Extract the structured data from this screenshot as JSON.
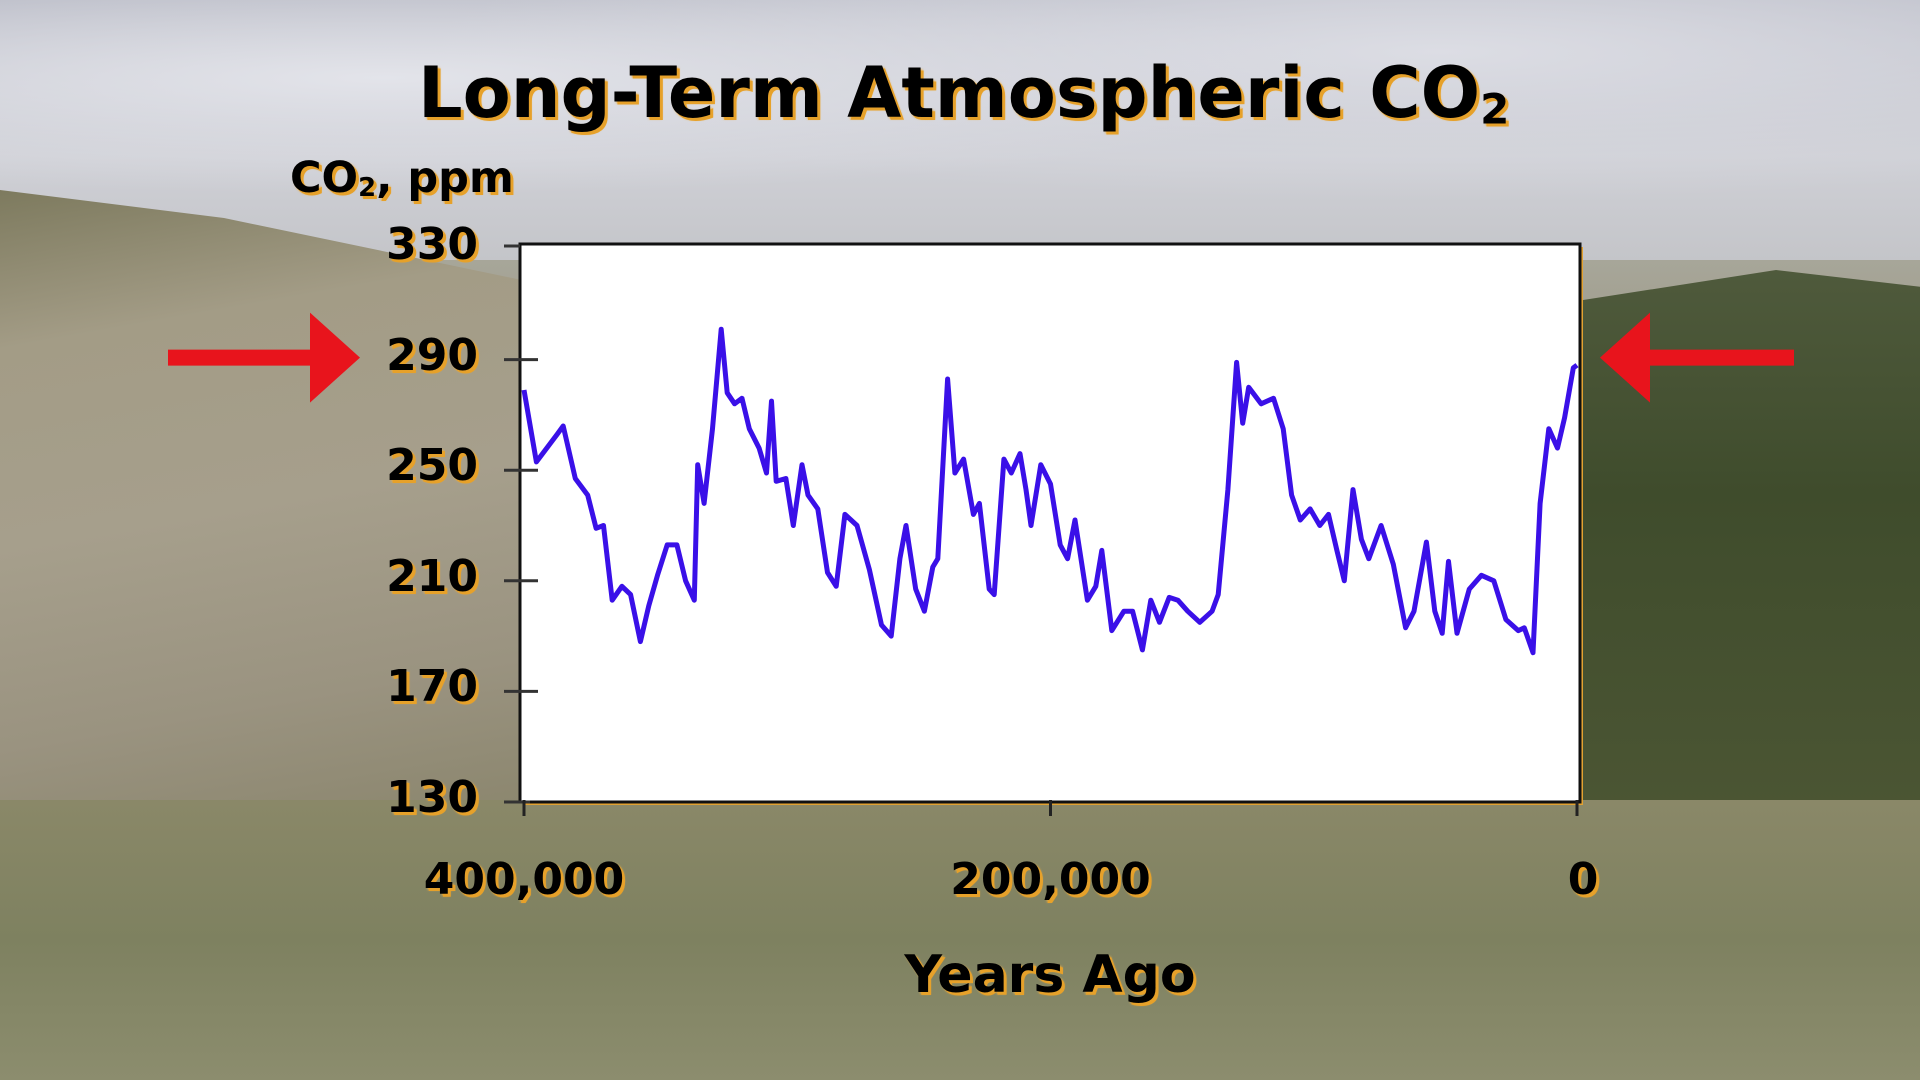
{
  "title": {
    "main": "Long-Term Atmospheric CO",
    "sub": "2"
  },
  "y_axis_label": {
    "main": "CO",
    "sub": "2",
    "rest": ", ppm"
  },
  "colors": {
    "line": "#3a10e8",
    "plot_bg": "#ffffff",
    "arrow": "#e8141c",
    "text_glow": "#e6a12a"
  },
  "arrows": {
    "left": "right-arrow-icon",
    "right": "left-arrow-icon",
    "marked_level_ppm": 290
  },
  "chart_data": {
    "type": "line",
    "title": "Long-Term Atmospheric CO2",
    "xlabel": "Years Ago",
    "ylabel": "CO2, ppm",
    "xlim": [
      400000,
      0
    ],
    "ylim": [
      130,
      330
    ],
    "x_ticks": [
      400000,
      200000,
      0
    ],
    "x_tick_labels": [
      "400,000",
      "200,000",
      "0"
    ],
    "y_ticks": [
      330,
      290,
      250,
      210,
      170,
      130
    ],
    "y_tick_labels": [
      "330",
      "290",
      "250",
      "210",
      "170",
      "130"
    ],
    "grid": false,
    "legend": "none",
    "series": [
      {
        "name": "CO2",
        "x": [
          400000,
          395300,
          387400,
          385100,
          380500,
          375800,
          372600,
          369800,
          366500,
          362800,
          359500,
          355800,
          352600,
          349300,
          345600,
          341900,
          338600,
          335300,
          334000,
          331600,
          328400,
          325100,
          322800,
          320000,
          317200,
          314400,
          310700,
          307900,
          306000,
          304200,
          300500,
          297700,
          294400,
          292100,
          288400,
          284700,
          281400,
          278100,
          273500,
          268800,
          264200,
          260500,
          257200,
          254900,
          251200,
          247900,
          244700,
          242800,
          239100,
          236300,
          233000,
          229300,
          227000,
          223300,
          221400,
          217700,
          214900,
          211600,
          209300,
          207400,
          203700,
          200000,
          196300,
          193500,
          190700,
          186000,
          182800,
          180500,
          176700,
          172100,
          168800,
          165100,
          161900,
          158600,
          154900,
          151600,
          147900,
          143300,
          138600,
          136300,
          132600,
          129300,
          127000,
          124700,
          120000,
          115300,
          111600,
          108400,
          105100,
          101400,
          97700,
          94400,
          91200,
          88400,
          85100,
          81900,
          79100,
          74400,
          69800,
          65100,
          61900,
          57200,
          54000,
          51200,
          48800,
          45600,
          40900,
          36300,
          31600,
          27000,
          22300,
          20000,
          16700,
          14000,
          10700,
          7400,
          4700,
          1400,
          0
        ],
        "y": [
          279,
          253,
          263,
          266,
          247,
          241,
          229,
          230,
          203,
          208,
          205,
          188,
          201,
          212,
          223,
          223,
          210,
          203,
          252,
          238,
          265,
          301,
          278,
          274,
          276,
          265,
          258,
          249,
          275,
          246,
          247,
          230,
          252,
          241,
          236,
          213,
          208,
          234,
          230,
          214,
          194,
          190,
          218,
          230,
          207,
          199,
          215,
          218,
          283,
          249,
          254,
          234,
          238,
          207,
          205,
          254,
          249,
          256,
          243,
          230,
          252,
          245,
          223,
          218,
          232,
          203,
          208,
          221,
          192,
          199,
          199,
          185,
          203,
          195,
          204,
          203,
          199,
          195,
          199,
          205,
          243,
          289,
          267,
          280,
          274,
          276,
          265,
          241,
          232,
          236,
          230,
          234,
          221,
          210,
          243,
          225,
          218,
          230,
          216,
          193,
          199,
          224,
          199,
          191,
          217,
          191,
          207,
          212,
          210,
          196,
          192,
          193,
          184,
          238,
          265,
          258,
          269,
          287,
          288
        ]
      }
    ]
  }
}
